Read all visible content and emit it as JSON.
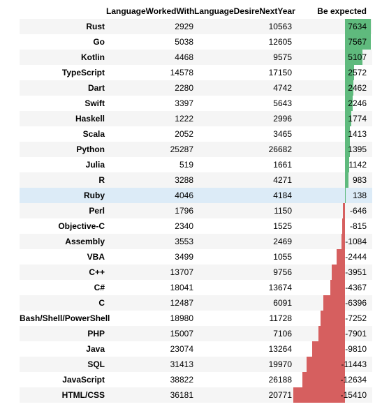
{
  "headers": {
    "worked": "LanguageWorkedWith",
    "desire": "LanguageDesireNextYear",
    "expected": "Be expected"
  },
  "colors": {
    "positive": "#5fba7d",
    "negative": "#d65f5f",
    "highlight": "#dcebf7"
  },
  "highlighted_row": "Ruby",
  "rows": [
    {
      "lang": "Rust",
      "worked": "2929",
      "desire": "10563",
      "expected": "7634"
    },
    {
      "lang": "Go",
      "worked": "5038",
      "desire": "12605",
      "expected": "7567"
    },
    {
      "lang": "Kotlin",
      "worked": "4468",
      "desire": "9575",
      "expected": "5107"
    },
    {
      "lang": "TypeScript",
      "worked": "14578",
      "desire": "17150",
      "expected": "2572"
    },
    {
      "lang": "Dart",
      "worked": "2280",
      "desire": "4742",
      "expected": "2462"
    },
    {
      "lang": "Swift",
      "worked": "3397",
      "desire": "5643",
      "expected": "2246"
    },
    {
      "lang": "Haskell",
      "worked": "1222",
      "desire": "2996",
      "expected": "1774"
    },
    {
      "lang": "Scala",
      "worked": "2052",
      "desire": "3465",
      "expected": "1413"
    },
    {
      "lang": "Python",
      "worked": "25287",
      "desire": "26682",
      "expected": "1395"
    },
    {
      "lang": "Julia",
      "worked": "519",
      "desire": "1661",
      "expected": "1142"
    },
    {
      "lang": "R",
      "worked": "3288",
      "desire": "4271",
      "expected": "983"
    },
    {
      "lang": "Ruby",
      "worked": "4046",
      "desire": "4184",
      "expected": "138"
    },
    {
      "lang": "Perl",
      "worked": "1796",
      "desire": "1150",
      "expected": "-646"
    },
    {
      "lang": "Objective-C",
      "worked": "2340",
      "desire": "1525",
      "expected": "-815"
    },
    {
      "lang": "Assembly",
      "worked": "3553",
      "desire": "2469",
      "expected": "-1084"
    },
    {
      "lang": "VBA",
      "worked": "3499",
      "desire": "1055",
      "expected": "-2444"
    },
    {
      "lang": "C++",
      "worked": "13707",
      "desire": "9756",
      "expected": "-3951"
    },
    {
      "lang": "C#",
      "worked": "18041",
      "desire": "13674",
      "expected": "-4367"
    },
    {
      "lang": "C",
      "worked": "12487",
      "desire": "6091",
      "expected": "-6396"
    },
    {
      "lang": "Bash/Shell/PowerShell",
      "worked": "18980",
      "desire": "11728",
      "expected": "-7252"
    },
    {
      "lang": "PHP",
      "worked": "15007",
      "desire": "7106",
      "expected": "-7901"
    },
    {
      "lang": "Java",
      "worked": "23074",
      "desire": "13264",
      "expected": "-9810"
    },
    {
      "lang": "SQL",
      "worked": "31413",
      "desire": "19970",
      "expected": "-11443"
    },
    {
      "lang": "JavaScript",
      "worked": "38822",
      "desire": "26188",
      "expected": "-12634"
    },
    {
      "lang": "HTML/CSS",
      "worked": "36181",
      "desire": "20771",
      "expected": "-15410"
    }
  ]
}
